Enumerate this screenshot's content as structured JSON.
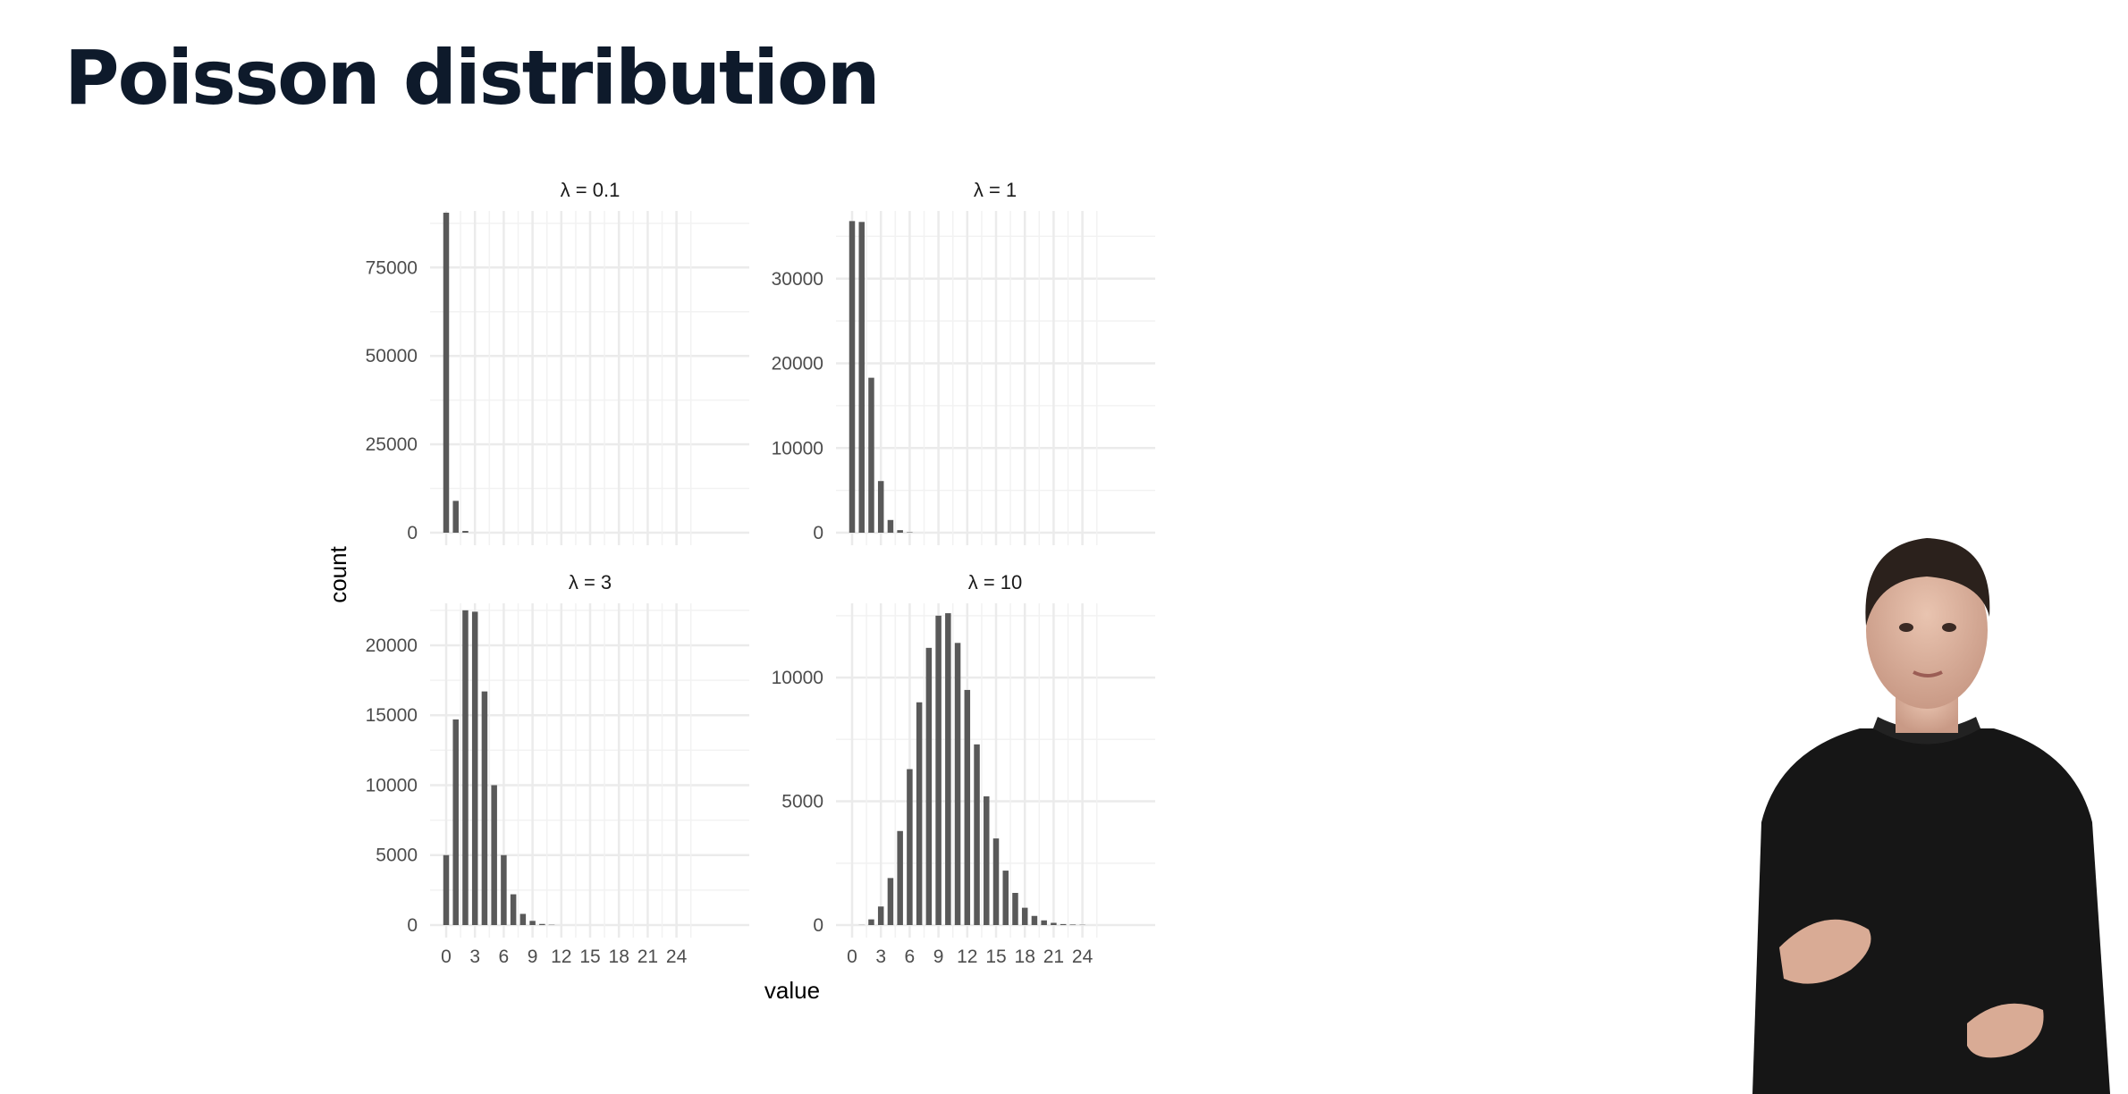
{
  "slide": {
    "title": "Poisson distribution"
  },
  "chart_data": {
    "type": "bar",
    "layout": "facet grid 2x2, shared x axis",
    "xlabel": "value",
    "ylabel": "count",
    "x_ticks": [
      0,
      3,
      6,
      9,
      12,
      15,
      18,
      21,
      24
    ],
    "grid": true,
    "bar_color": "#595959",
    "grid_color": "#ebebeb",
    "panels": [
      {
        "title": "λ = 0.1",
        "ylim": [
          0,
          91000
        ],
        "y_ticks": [
          0,
          25000,
          50000,
          75000
        ],
        "x": [
          0,
          1,
          2
        ],
        "values": [
          90500,
          9000,
          500
        ]
      },
      {
        "title": "λ = 1",
        "ylim": [
          0,
          38000
        ],
        "y_ticks": [
          0,
          10000,
          20000,
          30000
        ],
        "x": [
          0,
          1,
          2,
          3,
          4,
          5,
          6
        ],
        "values": [
          36800,
          36700,
          18300,
          6100,
          1500,
          300,
          50
        ]
      },
      {
        "title": "λ = 3",
        "ylim": [
          0,
          23000
        ],
        "y_ticks": [
          0,
          5000,
          10000,
          15000,
          20000
        ],
        "x": [
          0,
          1,
          2,
          3,
          4,
          5,
          6,
          7,
          8,
          9,
          10,
          11
        ],
        "values": [
          5000,
          14700,
          22500,
          22400,
          16700,
          10000,
          5000,
          2200,
          800,
          300,
          80,
          20
        ]
      },
      {
        "title": "λ = 10",
        "ylim": [
          0,
          13000
        ],
        "y_ticks": [
          0,
          5000,
          10000
        ],
        "x": [
          0,
          1,
          2,
          3,
          4,
          5,
          6,
          7,
          8,
          9,
          10,
          11,
          12,
          13,
          14,
          15,
          16,
          17,
          18,
          19,
          20,
          21,
          22,
          23,
          24
        ],
        "values": [
          0,
          5,
          230,
          750,
          1900,
          3800,
          6300,
          9000,
          11200,
          12500,
          12600,
          11400,
          9500,
          7300,
          5200,
          3500,
          2200,
          1300,
          700,
          370,
          190,
          90,
          40,
          20,
          10
        ]
      }
    ]
  }
}
